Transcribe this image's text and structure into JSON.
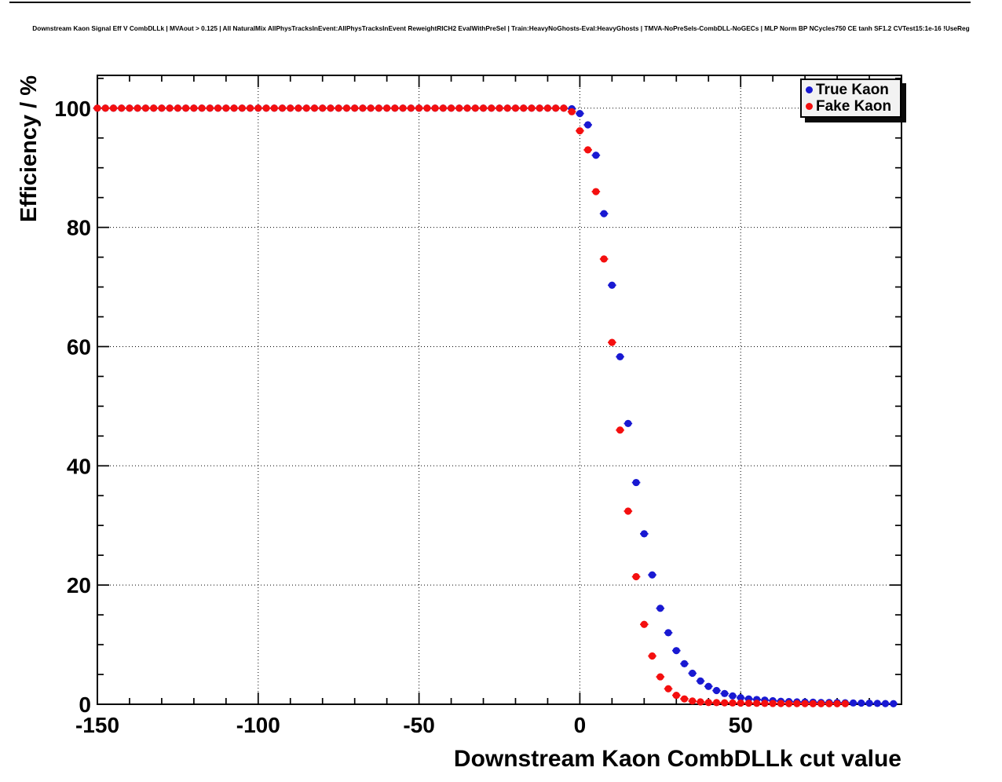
{
  "chart_data": {
    "type": "scatter",
    "title": "Downstream Kaon Signal Eff V CombDLLk | MVAout > 0.125 | All NaturalMix AllPhysTracksInEvent:AllPhysTracksInEvent ReweightRICH2 EvalWithPreSel | Train:HeavyNoGhosts-Eval:HeavyGhosts | TMVA-NoPreSels-CombDLL-NoGECs | MLP Norm BP NCycles750 CE tanh SF1.2 CVTest15:1e-16 !UseReg",
    "xlabel": "Downstream Kaon CombDLLk cut value",
    "ylabel": "Efficiency / %",
    "xlim": [
      -150,
      100
    ],
    "ylim": [
      0,
      105.5
    ],
    "x_ticks_major": [
      -150,
      -100,
      -50,
      0,
      50
    ],
    "x_tick_labels": [
      "-150",
      "-100",
      "-50",
      "0",
      "50"
    ],
    "x_minor_step": 10,
    "y_ticks_major": [
      0,
      20,
      40,
      60,
      80,
      100
    ],
    "y_tick_labels": [
      "0",
      "20",
      "40",
      "60",
      "80",
      "100"
    ],
    "y_minor_step": 5,
    "grid": "dotted-at-major-ticks",
    "legend_position": "top-right",
    "frame_color": "#000000",
    "series": [
      {
        "name": "True Kaon",
        "color": "#1919d2",
        "marker": "filled-circle-with-x-error-bar",
        "x_start": -150,
        "x_step": 2.5,
        "values": [
          100,
          100,
          100,
          100,
          100,
          100,
          100,
          100,
          100,
          100,
          100,
          100,
          100,
          100,
          100,
          100,
          100,
          100,
          100,
          100,
          100,
          100,
          100,
          100,
          100,
          100,
          100,
          100,
          100,
          100,
          100,
          100,
          100,
          100,
          100,
          100,
          100,
          100,
          100,
          100,
          100,
          100,
          100,
          100,
          100,
          100,
          100,
          100,
          100,
          100,
          100,
          100,
          100,
          100,
          100,
          100,
          100,
          100,
          100,
          99.9,
          99.1,
          97.2,
          92.1,
          82.3,
          70.3,
          58.3,
          47.1,
          37.2,
          28.6,
          21.7,
          16.1,
          12,
          9,
          6.8,
          5.2,
          3.9,
          3,
          2.3,
          1.8,
          1.4,
          1.1,
          0.9,
          0.8,
          0.7,
          0.6,
          0.5,
          0.45,
          0.4,
          0.38,
          0.35,
          0.3,
          0.3,
          0.28,
          0.25,
          0.22,
          0.2,
          0.18,
          0.15,
          0.12,
          0.1
        ]
      },
      {
        "name": "Fake Kaon",
        "color": "#f40f0f",
        "marker": "filled-circle-with-x-error-bar",
        "x_start": -150,
        "x_step": 2.5,
        "values": [
          100,
          100,
          100,
          100,
          100,
          100,
          100,
          100,
          100,
          100,
          100,
          100,
          100,
          100,
          100,
          100,
          100,
          100,
          100,
          100,
          100,
          100,
          100,
          100,
          100,
          100,
          100,
          100,
          100,
          100,
          100,
          100,
          100,
          100,
          100,
          100,
          100,
          100,
          100,
          100,
          100,
          100,
          100,
          100,
          100,
          100,
          100,
          100,
          100,
          100,
          100,
          100,
          100,
          100,
          100,
          100,
          100,
          100,
          100,
          99.4,
          96.2,
          93,
          86,
          74.7,
          60.7,
          46,
          32.4,
          21.4,
          13.4,
          8.1,
          4.6,
          2.6,
          1.5,
          0.9,
          0.55,
          0.4,
          0.3,
          0.28,
          0.25,
          0.22,
          0.2,
          0.18,
          0.16,
          0.15,
          0.14,
          0.13,
          0.12,
          0.12,
          0.11,
          0.1,
          0.1,
          0.1,
          0.1,
          0.1
        ]
      }
    ]
  },
  "legend": {
    "items": [
      {
        "label": "True Kaon",
        "color": "#1919d2"
      },
      {
        "label": "Fake Kaon",
        "color": "#f40f0f"
      }
    ]
  }
}
